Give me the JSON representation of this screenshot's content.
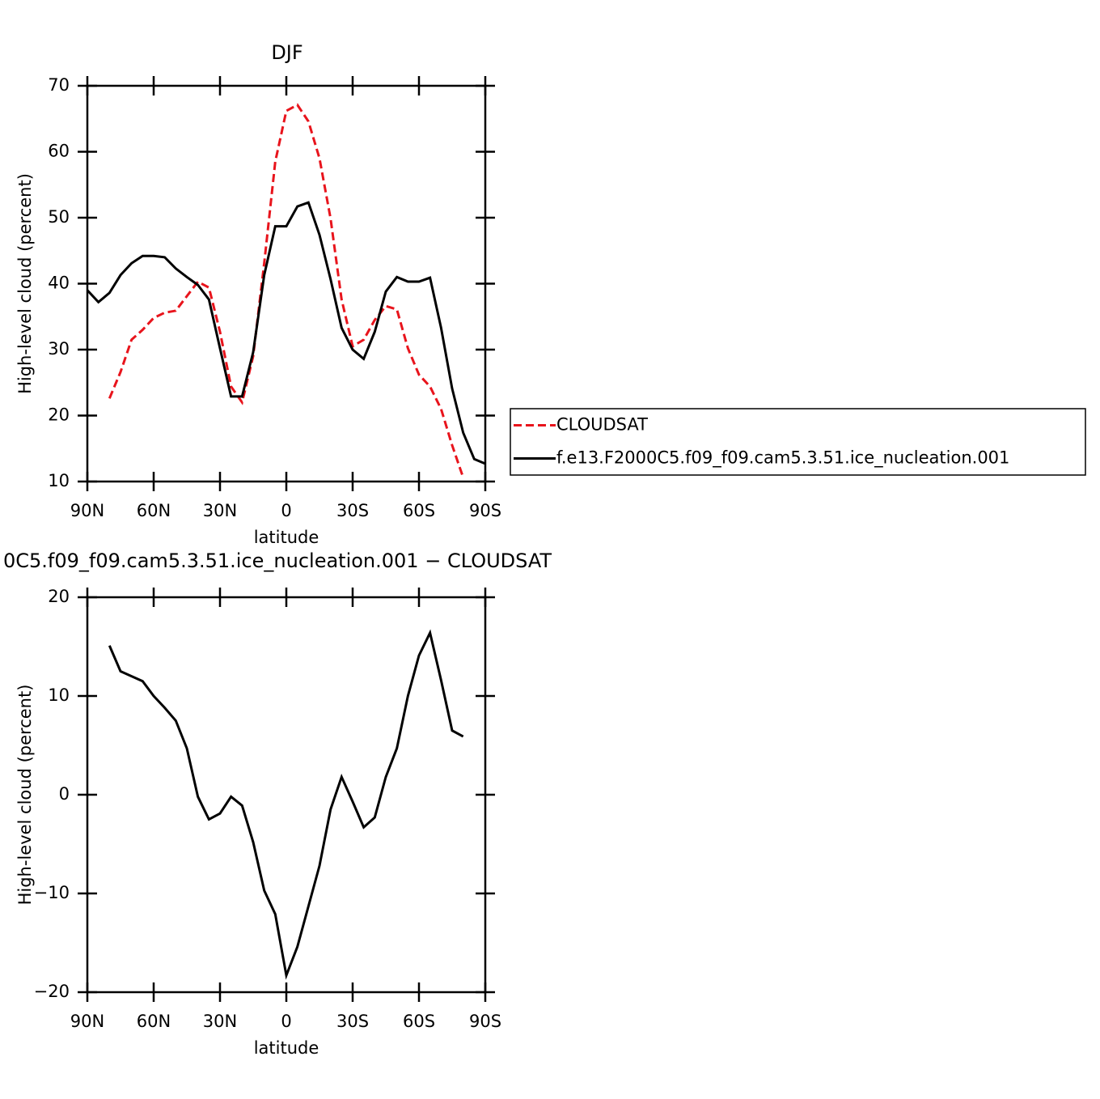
{
  "chart_data": [
    {
      "type": "line",
      "title": "DJF",
      "xlabel": "latitude",
      "ylabel": "High-level cloud (percent)",
      "xlim": [
        90,
        -90
      ],
      "ylim": [
        10,
        70
      ],
      "xticks": [
        {
          "value": 90,
          "label": "90N"
        },
        {
          "value": 60,
          "label": "60N"
        },
        {
          "value": 30,
          "label": "30N"
        },
        0,
        {
          "value": -30,
          "label": "30S"
        },
        {
          "value": -60,
          "label": "60S"
        },
        {
          "value": -90,
          "label": "90S"
        }
      ],
      "yticks": [
        10,
        20,
        30,
        40,
        50,
        60,
        70
      ],
      "legend": "right",
      "series": [
        {
          "name": "CLOUDSAT",
          "color": "#e8141c",
          "dash": true,
          "x": [
            80,
            75,
            70,
            65,
            60,
            55,
            50,
            45,
            40,
            35,
            30,
            25,
            20,
            15,
            10,
            5,
            0,
            -5,
            -10,
            -15,
            -20,
            -25,
            -30,
            -35,
            -40,
            -45,
            -50,
            -55,
            -60,
            -65,
            -70,
            -75,
            -80
          ],
          "values": [
            22.6,
            26.6,
            31.5,
            33,
            34.8,
            35.6,
            35.9,
            38.1,
            40.3,
            39.4,
            32.7,
            24.4,
            22,
            29,
            43.1,
            58.5,
            66.2,
            67.1,
            64.6,
            59,
            49.9,
            37.6,
            30.5,
            31.5,
            34.5,
            36.6,
            36.1,
            30.2,
            26.2,
            24.4,
            21,
            15.5,
            10.6
          ]
        },
        {
          "name": "f.e13.F2000C5.f09_f09.cam5.3.51.ice_nucleation.001",
          "color": "#000000",
          "dash": false,
          "x": [
            90,
            85,
            80,
            75,
            70,
            65,
            60,
            55,
            50,
            45,
            40,
            35,
            30,
            25,
            20,
            15,
            10,
            5,
            0,
            -5,
            -10,
            -15,
            -20,
            -25,
            -30,
            -35,
            -40,
            -45,
            -50,
            -55,
            -60,
            -65,
            -70,
            -75,
            -80,
            -85,
            -90
          ],
          "values": [
            39,
            37.2,
            38.6,
            41.3,
            43.1,
            44.2,
            44.2,
            44,
            42.3,
            41,
            39.8,
            37.6,
            30.2,
            22.9,
            22.9,
            29.6,
            41.3,
            48.7,
            48.7,
            51.7,
            52.3,
            47.4,
            40.7,
            33.3,
            30,
            28.6,
            32.7,
            38.8,
            41,
            40.3,
            40.3,
            40.9,
            33.3,
            24.1,
            17.4,
            13.4,
            12.7
          ]
        }
      ]
    },
    {
      "type": "line",
      "title": "0C5.f09_f09.cam5.3.51.ice_nucleation.001 − CLOUDSAT",
      "xlabel": "latitude",
      "ylabel": "High-level cloud (percent)",
      "xlim": [
        90,
        -90
      ],
      "ylim": [
        -20,
        20
      ],
      "xticks": [
        {
          "value": 90,
          "label": "90N"
        },
        {
          "value": 60,
          "label": "60N"
        },
        {
          "value": 30,
          "label": "30N"
        },
        0,
        {
          "value": -30,
          "label": "30S"
        },
        {
          "value": -60,
          "label": "60S"
        },
        {
          "value": -90,
          "label": "90S"
        }
      ],
      "yticks": [
        {
          "value": -20,
          "label": "−20"
        },
        {
          "value": -10,
          "label": "−10"
        },
        0,
        10,
        20
      ],
      "series": [
        {
          "color": "#000000",
          "dash": false,
          "x": [
            80,
            75,
            70,
            65,
            60,
            55,
            50,
            45,
            40,
            35,
            30,
            25,
            20,
            15,
            10,
            5,
            0,
            -5,
            -10,
            -15,
            -20,
            -25,
            -30,
            -35,
            -40,
            -45,
            -50,
            -55,
            -60,
            -65,
            -70,
            -75,
            -80
          ],
          "values": [
            15.1,
            12.5,
            12,
            11.5,
            10,
            8.8,
            7.5,
            4.7,
            -0.2,
            -2.5,
            -1.9,
            -0.2,
            -1.1,
            -4.8,
            -9.7,
            -12.1,
            -18.3,
            -15.4,
            -11.3,
            -7.2,
            -1.5,
            1.8,
            -0.7,
            -3.3,
            -2.3,
            1.8,
            4.7,
            10,
            14.1,
            16.4,
            11.6,
            6.5,
            5.9
          ]
        }
      ]
    }
  ]
}
